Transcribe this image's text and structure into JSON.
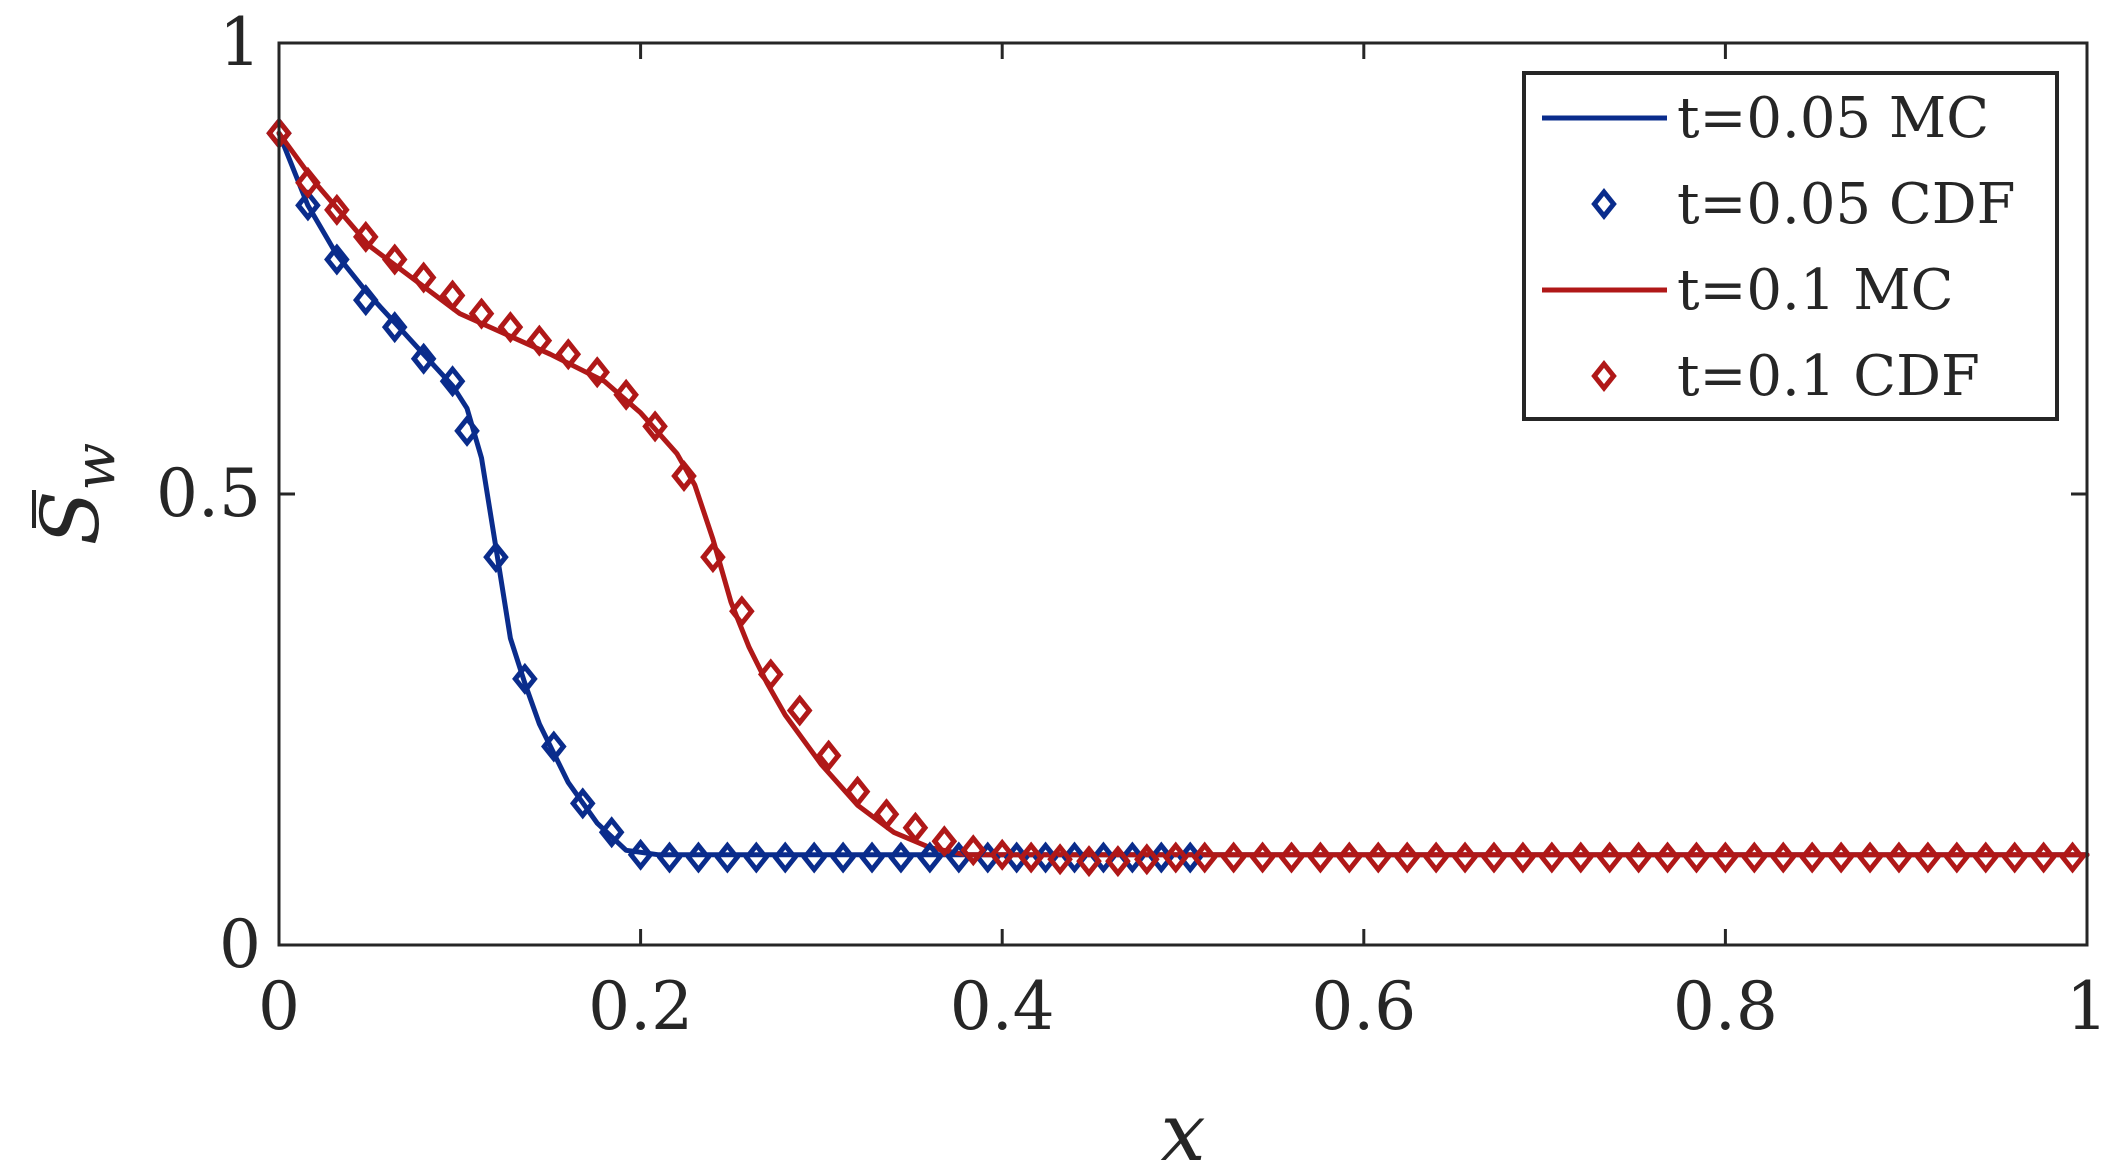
{
  "chart_data": {
    "type": "line",
    "title": "",
    "xlabel": "x",
    "ylabel": {
      "base": "S",
      "subscript": "w",
      "overbar": true
    },
    "xlim": [
      0,
      1
    ],
    "ylim": [
      0,
      1
    ],
    "xticks": [
      0,
      0.2,
      0.4,
      0.6,
      0.8,
      1
    ],
    "xtick_labels": [
      "0",
      "0.2",
      "0.4",
      "0.6",
      "0.8",
      "1"
    ],
    "yticks": [
      0,
      0.5,
      1
    ],
    "ytick_labels": [
      "0",
      "0.5",
      "1"
    ],
    "grid": false,
    "legend_position": "top-right",
    "colors": {
      "blue": "#0a2c8c",
      "red": "#b01818",
      "axis": "#262626"
    },
    "series": [
      {
        "name": "t=0.05 MC",
        "style": "line",
        "color": "#0a2c8c",
        "x": [
          0,
          0.016,
          0.032,
          0.048,
          0.064,
          0.08,
          0.096,
          0.104,
          0.112,
          0.12,
          0.128,
          0.136,
          0.144,
          0.16,
          0.176,
          0.192,
          0.21,
          0.25,
          0.3,
          0.4,
          0.5,
          0.6,
          0.7,
          0.8,
          0.9,
          1
        ],
        "y": [
          0.9,
          0.82,
          0.765,
          0.725,
          0.69,
          0.655,
          0.62,
          0.595,
          0.54,
          0.44,
          0.34,
          0.29,
          0.245,
          0.18,
          0.135,
          0.105,
          0.1,
          0.1,
          0.1,
          0.1,
          0.1,
          0.1,
          0.1,
          0.1,
          0.1,
          0.1
        ]
      },
      {
        "name": "t=0.05 CDF",
        "style": "markers",
        "marker": "diamond",
        "color": "#0a2c8c",
        "x": [
          0,
          0.016,
          0.032,
          0.048,
          0.064,
          0.08,
          0.096,
          0.104,
          0.12,
          0.136,
          0.152,
          0.168,
          0.184,
          0.2,
          0.216,
          0.232,
          0.248,
          0.264,
          0.28,
          0.296,
          0.312,
          0.328,
          0.344,
          0.36,
          0.376,
          0.392,
          0.408,
          0.424,
          0.44,
          0.456,
          0.472,
          0.488,
          0.504
        ],
        "y": [
          0.9,
          0.82,
          0.76,
          0.715,
          0.685,
          0.65,
          0.625,
          0.57,
          0.43,
          0.295,
          0.22,
          0.157,
          0.125,
          0.1,
          0.097,
          0.097,
          0.097,
          0.097,
          0.097,
          0.097,
          0.097,
          0.097,
          0.097,
          0.097,
          0.097,
          0.097,
          0.097,
          0.097,
          0.097,
          0.097,
          0.097,
          0.097,
          0.097
        ]
      },
      {
        "name": "t=0.1 MC",
        "style": "line",
        "color": "#b01818",
        "x": [
          0,
          0.02,
          0.05,
          0.1,
          0.15,
          0.18,
          0.2,
          0.22,
          0.23,
          0.24,
          0.25,
          0.26,
          0.27,
          0.28,
          0.3,
          0.32,
          0.34,
          0.36,
          0.38,
          0.4,
          0.45,
          0.5,
          0.6,
          0.7,
          0.8,
          0.9,
          1
        ],
        "y": [
          0.9,
          0.845,
          0.775,
          0.7,
          0.655,
          0.625,
          0.59,
          0.545,
          0.51,
          0.45,
          0.38,
          0.33,
          0.29,
          0.255,
          0.2,
          0.155,
          0.125,
          0.108,
          0.1,
          0.1,
          0.1,
          0.1,
          0.1,
          0.1,
          0.1,
          0.1,
          0.1
        ]
      },
      {
        "name": "t=0.1 CDF",
        "style": "markers",
        "marker": "diamond",
        "color": "#b01818",
        "x": [
          0,
          0.016,
          0.032,
          0.048,
          0.064,
          0.08,
          0.096,
          0.112,
          0.128,
          0.144,
          0.16,
          0.176,
          0.192,
          0.208,
          0.224,
          0.24,
          0.256,
          0.272,
          0.288,
          0.304,
          0.32,
          0.336,
          0.352,
          0.368,
          0.384,
          0.4,
          0.416,
          0.432,
          0.448,
          0.464,
          0.48,
          0.496,
          0.512,
          0.528,
          0.544,
          0.56,
          0.576,
          0.592,
          0.608,
          0.624,
          0.64,
          0.656,
          0.672,
          0.688,
          0.704,
          0.72,
          0.736,
          0.752,
          0.768,
          0.784,
          0.8,
          0.816,
          0.832,
          0.848,
          0.864,
          0.88,
          0.896,
          0.912,
          0.928,
          0.944,
          0.96,
          0.976,
          0.992
        ],
        "y": [
          0.9,
          0.845,
          0.815,
          0.785,
          0.76,
          0.74,
          0.72,
          0.7,
          0.685,
          0.67,
          0.655,
          0.635,
          0.61,
          0.575,
          0.52,
          0.43,
          0.37,
          0.3,
          0.26,
          0.21,
          0.17,
          0.145,
          0.13,
          0.115,
          0.105,
          0.1,
          0.097,
          0.095,
          0.093,
          0.093,
          0.095,
          0.097,
          0.097,
          0.097,
          0.097,
          0.097,
          0.097,
          0.097,
          0.097,
          0.097,
          0.097,
          0.097,
          0.097,
          0.097,
          0.097,
          0.097,
          0.097,
          0.097,
          0.097,
          0.097,
          0.097,
          0.097,
          0.097,
          0.097,
          0.097,
          0.097,
          0.097,
          0.097,
          0.097,
          0.097,
          0.097,
          0.097,
          0.097
        ]
      }
    ]
  }
}
